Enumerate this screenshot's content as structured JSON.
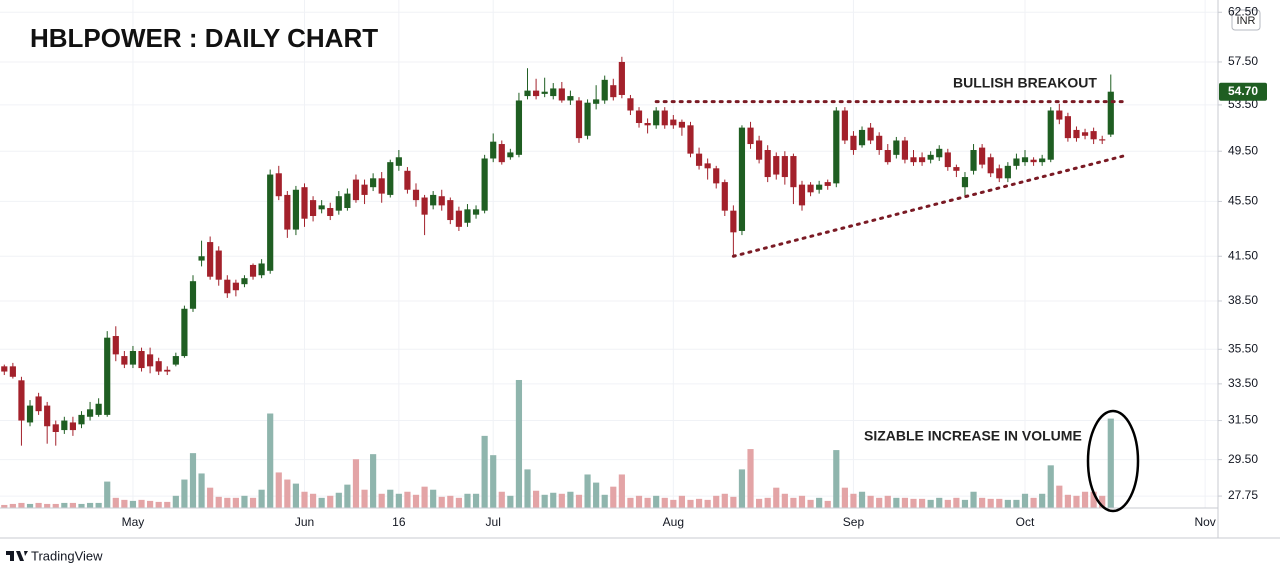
{
  "chart_data": {
    "type": "candlestick",
    "title": "HBLPOWER : DAILY CHART",
    "currency": "INR",
    "annotations": [
      "BULLISH BREAKOUT",
      "SIZABLE INCREASE IN VOLUME"
    ],
    "last_close_label": "54.70",
    "brand": "TradingView",
    "log_scale": true,
    "grid": true,
    "up_color": "#1f5e22",
    "down_color": "#a3212b",
    "volume_up_color": "#8fb5ad",
    "volume_down_color": "#e3a4a6",
    "ylim": [
      27.2,
      63.8
    ],
    "yticks": [
      27.75,
      {
        "value": 29.5,
        "label": "29.50"
      },
      {
        "value": 31.5,
        "label": "31.50"
      },
      {
        "value": 33.5,
        "label": "33.50"
      },
      {
        "value": 35.5,
        "label": "35.50"
      },
      {
        "value": 38.5,
        "label": "38.50"
      },
      {
        "value": 41.5,
        "label": "41.50"
      },
      {
        "value": 45.5,
        "label": "45.50"
      },
      {
        "value": 49.5,
        "label": "49.50"
      },
      {
        "value": 53.5,
        "label": "53.50"
      },
      {
        "value": 57.5,
        "label": "57.50"
      },
      {
        "value": 62.5,
        "label": "62.50"
      }
    ],
    "volume_ylim": [
      0,
      500
    ],
    "trendlines": [
      {
        "from": [
          76,
          53.8
        ],
        "to": [
          131,
          53.8
        ]
      },
      {
        "from": [
          85,
          41.5
        ],
        "to": [
          131,
          49.2
        ]
      }
    ],
    "categories": [
      null,
      null,
      null,
      null,
      null,
      null,
      null,
      null,
      null,
      null,
      null,
      null,
      null,
      null,
      null,
      "May",
      null,
      null,
      null,
      null,
      null,
      null,
      null,
      null,
      null,
      null,
      null,
      null,
      null,
      null,
      null,
      null,
      null,
      null,
      null,
      "Jun",
      null,
      null,
      null,
      null,
      null,
      null,
      null,
      null,
      null,
      null,
      "16",
      null,
      null,
      null,
      null,
      null,
      null,
      null,
      null,
      null,
      null,
      "Jul",
      null,
      null,
      null,
      null,
      null,
      null,
      null,
      null,
      null,
      null,
      null,
      null,
      null,
      null,
      null,
      null,
      null,
      null,
      null,
      null,
      "Aug",
      null,
      null,
      null,
      null,
      null,
      null,
      null,
      null,
      null,
      null,
      null,
      null,
      null,
      null,
      null,
      null,
      null,
      null,
      null,
      null,
      "Sep",
      null,
      null,
      null,
      null,
      null,
      null,
      null,
      null,
      null,
      null,
      null,
      null,
      null,
      null,
      null,
      null,
      null,
      null,
      null,
      "Oct",
      null,
      null,
      null,
      null,
      null,
      null,
      null,
      null,
      null,
      null,
      null,
      null,
      null,
      null,
      null,
      null,
      null,
      null,
      null,
      null,
      "Nov",
      null
    ],
    "open": [
      34.5,
      34.5,
      33.7,
      31.4,
      32.8,
      32.3,
      31.3,
      31.0,
      31.4,
      31.3,
      31.7,
      31.8,
      31.8,
      36.3,
      35.1,
      34.6,
      35.4,
      35.2,
      34.8,
      34.3,
      34.6,
      35.1,
      38.0,
      41.2,
      42.5,
      41.9,
      39.9,
      39.7,
      39.6,
      40.9,
      40.2,
      40.5,
      47.7,
      46.0,
      43.4,
      46.6,
      45.6,
      44.9,
      45.0,
      44.8,
      45.0,
      47.2,
      46.8,
      46.6,
      47.3,
      46.0,
      48.3,
      47.9,
      46.4,
      45.8,
      45.2,
      45.9,
      45.6,
      44.8,
      43.9,
      44.5,
      44.8,
      48.9,
      50.1,
      49.0,
      49.2,
      54.3,
      54.8,
      54.5,
      54.3,
      55.0,
      53.9,
      53.9,
      50.8,
      53.6,
      53.9,
      55.3,
      57.5,
      54.1,
      53.0,
      51.9,
      51.7,
      53.0,
      52.2,
      52.0,
      51.7,
      49.3,
      48.5,
      48.1,
      47.0,
      44.8,
      43.3,
      51.5,
      50.4,
      49.6,
      49.1,
      49.1,
      49.1,
      46.8,
      46.8,
      46.4,
      47.0,
      46.9,
      53.0,
      50.8,
      50.0,
      51.5,
      50.8,
      49.6,
      49.2,
      50.4,
      49.0,
      49.0,
      48.8,
      49.0,
      49.4,
      48.2,
      46.6,
      47.9,
      49.8,
      49.0,
      48.1,
      47.3,
      48.3,
      48.6,
      48.8,
      48.6,
      48.8,
      53.0,
      52.5,
      51.3,
      51.1,
      51.2,
      50.5,
      50.9,
      null,
      null,
      null,
      null,
      null,
      null,
      null,
      null,
      null,
      null,
      null,
      null
    ],
    "high": [
      34.6,
      34.7,
      33.9,
      32.6,
      33.0,
      32.5,
      31.5,
      31.7,
      31.7,
      32.0,
      32.5,
      32.7,
      36.6,
      36.9,
      35.4,
      35.7,
      35.6,
      35.6,
      35.0,
      34.5,
      35.3,
      38.2,
      40.2,
      42.6,
      42.9,
      42.2,
      40.2,
      39.9,
      40.2,
      41.0,
      41.3,
      48.0,
      48.3,
      46.3,
      46.7,
      46.9,
      45.9,
      45.6,
      45.4,
      46.3,
      46.5,
      47.6,
      47.2,
      47.7,
      47.8,
      48.8,
      49.6,
      48.2,
      46.9,
      46.0,
      46.3,
      46.4,
      45.8,
      45.1,
      45.3,
      45.2,
      49.2,
      51.0,
      50.4,
      49.7,
      54.6,
      56.9,
      55.9,
      56.0,
      55.5,
      55.6,
      54.8,
      54.2,
      54.0,
      55.3,
      56.2,
      55.9,
      58.0,
      54.4,
      53.3,
      52.3,
      53.3,
      53.3,
      52.6,
      52.2,
      52.0,
      49.8,
      48.9,
      48.3,
      47.2,
      45.2,
      51.7,
      52.0,
      50.8,
      50.0,
      49.4,
      49.5,
      49.3,
      47.1,
      47.0,
      47.1,
      47.2,
      53.3,
      53.3,
      51.2,
      51.6,
      51.9,
      51.1,
      50.1,
      50.7,
      50.7,
      49.6,
      49.4,
      49.5,
      50.0,
      49.7,
      48.4,
      47.8,
      50.1,
      50.1,
      49.3,
      48.4,
      48.6,
      49.3,
      49.6,
      49.0,
      49.2,
      53.3,
      53.6,
      52.8,
      51.6,
      51.4,
      51.5,
      50.8,
      56.3,
      null,
      null,
      null,
      null,
      null,
      null,
      null,
      null,
      null,
      null,
      null,
      null
    ],
    "low": [
      34.0,
      33.8,
      30.2,
      31.2,
      31.8,
      30.3,
      30.2,
      30.8,
      30.7,
      31.1,
      31.5,
      31.7,
      31.7,
      34.8,
      34.4,
      34.4,
      34.2,
      34.1,
      34.0,
      34.0,
      34.5,
      35.0,
      37.8,
      40.8,
      39.9,
      39.5,
      38.7,
      38.8,
      39.4,
      39.9,
      40.0,
      40.3,
      45.6,
      42.8,
      43.0,
      43.6,
      44.0,
      44.6,
      44.1,
      44.5,
      44.8,
      45.4,
      45.3,
      46.3,
      45.4,
      45.8,
      47.9,
      46.1,
      45.1,
      43.0,
      44.9,
      44.8,
      43.8,
      43.3,
      43.6,
      44.2,
      44.6,
      48.6,
      48.4,
      48.8,
      49.0,
      54.0,
      54.0,
      54.2,
      54.0,
      53.7,
      53.5,
      50.2,
      50.5,
      53.1,
      53.6,
      53.9,
      54.1,
      52.6,
      51.5,
      51.0,
      51.4,
      51.4,
      51.4,
      50.8,
      49.0,
      48.0,
      47.2,
      46.5,
      44.4,
      41.5,
      43.0,
      49.7,
      48.5,
      47.0,
      47.2,
      46.8,
      45.3,
      44.8,
      45.9,
      46.1,
      46.4,
      46.6,
      50.1,
      49.2,
      49.8,
      50.1,
      49.2,
      48.4,
      48.9,
      48.5,
      48.3,
      48.3,
      48.5,
      48.7,
      47.9,
      47.4,
      45.9,
      47.6,
      48.1,
      47.4,
      47.0,
      47.0,
      48.0,
      48.3,
      48.3,
      48.3,
      48.6,
      51.8,
      50.3,
      50.3,
      50.5,
      50.1,
      50.1,
      50.7,
      null,
      null,
      null,
      null,
      null,
      null,
      null,
      null,
      null,
      null,
      null,
      null
    ],
    "close": [
      34.2,
      33.9,
      31.5,
      32.3,
      32.0,
      31.2,
      30.9,
      31.5,
      31.0,
      31.8,
      32.1,
      32.4,
      36.2,
      35.2,
      34.6,
      35.4,
      34.4,
      34.5,
      34.2,
      34.2,
      35.1,
      38.0,
      39.8,
      41.5,
      40.1,
      39.9,
      39.0,
      39.2,
      40.0,
      40.1,
      41.0,
      47.6,
      45.9,
      43.4,
      46.4,
      44.2,
      44.4,
      45.2,
      44.4,
      45.9,
      46.1,
      45.6,
      46.0,
      47.3,
      46.1,
      48.6,
      49.0,
      46.4,
      45.6,
      44.5,
      46.0,
      45.2,
      44.1,
      43.6,
      44.9,
      44.9,
      48.9,
      50.3,
      48.6,
      49.4,
      53.9,
      54.8,
      54.3,
      54.7,
      55.0,
      53.9,
      54.3,
      50.6,
      53.7,
      54.0,
      55.8,
      54.2,
      54.4,
      53.0,
      51.9,
      51.7,
      53.0,
      51.7,
      51.7,
      51.5,
      49.3,
      48.3,
      48.1,
      46.9,
      44.8,
      43.2,
      51.5,
      50.1,
      48.8,
      47.4,
      47.6,
      47.4,
      46.6,
      45.2,
      46.2,
      46.8,
      46.7,
      53.0,
      50.4,
      49.6,
      51.3,
      50.4,
      49.6,
      48.6,
      50.4,
      48.8,
      48.6,
      48.6,
      49.2,
      49.7,
      48.2,
      47.9,
      47.4,
      49.6,
      48.4,
      47.7,
      47.3,
      48.3,
      48.9,
      49.0,
      48.6,
      48.9,
      53.0,
      52.2,
      50.6,
      50.6,
      50.8,
      50.5,
      50.4,
      54.7,
      null,
      null,
      null,
      null,
      null,
      null,
      null,
      null,
      null,
      null,
      null,
      null
    ],
    "volume": [
      3,
      4,
      5,
      4,
      5,
      4,
      4,
      5,
      5,
      4,
      5,
      5,
      26,
      10,
      8,
      7,
      8,
      7,
      6,
      6,
      12,
      28,
      54,
      34,
      20,
      11,
      10,
      10,
      12,
      10,
      18,
      93,
      35,
      28,
      24,
      16,
      14,
      10,
      12,
      15,
      23,
      48,
      18,
      53,
      14,
      18,
      14,
      16,
      13,
      21,
      18,
      11,
      12,
      10,
      14,
      14,
      71,
      52,
      16,
      12,
      126,
      38,
      17,
      13,
      15,
      14,
      16,
      13,
      33,
      25,
      13,
      21,
      33,
      10,
      12,
      10,
      12,
      10,
      8,
      12,
      8,
      9,
      8,
      12,
      14,
      11,
      38,
      58,
      9,
      10,
      20,
      14,
      10,
      12,
      8,
      10,
      7,
      57,
      20,
      14,
      16,
      12,
      10,
      12,
      10,
      10,
      9,
      9,
      8,
      10,
      8,
      10,
      8,
      16,
      10,
      9,
      9,
      8,
      8,
      14,
      10,
      14,
      42,
      22,
      13,
      12,
      16,
      16,
      12,
      88,
      null,
      null,
      null,
      null,
      null,
      null,
      null,
      null,
      null,
      null,
      null,
      null
    ]
  }
}
